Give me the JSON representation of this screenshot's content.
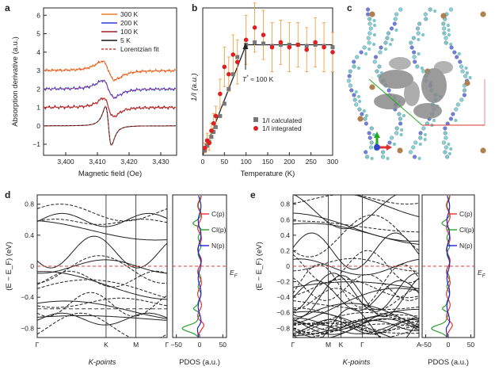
{
  "chart_data": [
    {
      "panel": "a",
      "type": "line",
      "xlabel": "Magnetic field (Oe)",
      "ylabel": "Absorption derivative (a.u.)",
      "xlim": [
        3393,
        3435
      ],
      "ylim": [
        -1.6,
        6.4
      ],
      "xticks": [
        "3,400",
        "3,410",
        "3,420",
        "3,430"
      ],
      "xtick_values": [
        3400,
        3410,
        3420,
        3430
      ],
      "yticks": [
        "−1",
        "0",
        "1",
        "2",
        "3",
        "4",
        "5",
        "6"
      ],
      "ytick_values": [
        -1,
        0,
        1,
        2,
        3,
        4,
        5,
        6
      ],
      "center": 3413.5,
      "series": [
        {
          "name": "300 K",
          "color": "#f07b22",
          "offset": 3,
          "amp": 0.6,
          "width": 3.5
        },
        {
          "name": "200 K",
          "color": "#2b3cd8",
          "offset": 2,
          "amp": 0.55,
          "width": 3.2
        },
        {
          "name": "100 K",
          "color": "#9e1f1f",
          "offset": 1,
          "amp": 0.6,
          "width": 2.8
        },
        {
          "name": "5 K",
          "color": "#111111",
          "offset": 0,
          "amp": 1.25,
          "width": 1.6
        },
        {
          "name": "Lorentzian fit",
          "color": "#e03a3a",
          "dashed": true
        }
      ]
    },
    {
      "panel": "b",
      "type": "scatter",
      "xlabel": "Temperature (K)",
      "ylabel": "1/I (a.u.)",
      "xlim": [
        0,
        300
      ],
      "ylim": [
        0,
        6
      ],
      "xticks": [
        "0",
        "50",
        "100",
        "150",
        "200",
        "250",
        "300"
      ],
      "xtick_values": [
        0,
        50,
        100,
        150,
        200,
        250,
        300
      ],
      "annotation": "T* ≈ 100 K",
      "fit_line": [
        [
          0,
          0
        ],
        [
          100,
          4.5
        ],
        [
          300,
          4.5
        ]
      ],
      "series": [
        {
          "name": "1/I calculated",
          "marker": "square",
          "color": "#777777",
          "x": [
            5,
            10,
            15,
            20,
            25,
            30,
            40,
            50,
            60,
            70,
            80,
            100,
            120,
            140,
            160,
            180,
            200,
            220,
            240,
            260,
            280,
            300
          ],
          "y": [
            0.2,
            0.4,
            0.55,
            0.75,
            0.95,
            1.15,
            1.6,
            2.1,
            2.7,
            3.3,
            4.0,
            4.5,
            4.6,
            4.55,
            4.45,
            4.5,
            4.5,
            4.5,
            4.45,
            4.5,
            4.45,
            4.4
          ]
        },
        {
          "name": "1/I integrated",
          "marker": "circle",
          "color": "#e02020",
          "x": [
            5,
            10,
            15,
            20,
            25,
            30,
            40,
            50,
            60,
            70,
            80,
            100,
            120,
            140,
            160,
            180,
            200,
            220,
            240,
            260,
            280,
            300
          ],
          "y": [
            0.3,
            0.6,
            0.5,
            1.0,
            1.3,
            1.6,
            2.5,
            3.6,
            3.3,
            4.1,
            3.8,
            4.7,
            5.2,
            4.9,
            4.4,
            4.6,
            4.4,
            4.5,
            4.3,
            4.6,
            4.4,
            4.2
          ],
          "yerr": [
            0.2,
            0.3,
            0.3,
            0.3,
            0.4,
            0.4,
            0.6,
            0.8,
            0.7,
            0.8,
            0.9,
            1.0,
            1.0,
            1.0,
            1.0,
            0.9,
            1.0,
            0.9,
            0.9,
            1.0,
            1.0,
            0.8
          ]
        }
      ]
    },
    {
      "panel": "c",
      "type": "other",
      "description": "Crystal structure with spin-density isosurfaces"
    },
    {
      "panel": "d",
      "type": "line",
      "xlabel": "K-points",
      "ylabel": "(E − E_F) (eV)",
      "ylim": [
        -0.92,
        0.92
      ],
      "yticks": [
        "−0.8",
        "−0.4",
        "0",
        "0.4",
        "0.8"
      ],
      "ytick_values": [
        -0.8,
        -0.4,
        0,
        0.4,
        0.8
      ],
      "extra_ytick": "−0.6",
      "xticks": [
        "Γ",
        "K",
        "M",
        "Γ"
      ],
      "xtick_values": [
        0,
        0.53,
        0.76,
        1.0
      ],
      "pdos": {
        "xlabel": "PDOS (a.u.)",
        "xticks": [
          "−50",
          "0",
          "50"
        ],
        "xtick_values": [
          -50,
          0,
          50
        ],
        "xlim": [
          -58,
          58
        ],
        "legend": [
          "C(p)",
          "Cl(p)",
          "N(p)"
        ],
        "fermi_label": "E_F"
      }
    },
    {
      "panel": "e",
      "type": "line",
      "xlabel": "K-points",
      "ylabel": "(E − E_F) (eV)",
      "ylim": [
        -0.92,
        0.92
      ],
      "yticks": [
        "−0.8",
        "−0.6",
        "−0.4",
        "−0.2",
        "0",
        "0.2",
        "0.4",
        "0.6",
        "0.8"
      ],
      "ytick_values": [
        -0.8,
        -0.6,
        -0.4,
        -0.2,
        0,
        0.2,
        0.4,
        0.6,
        0.8
      ],
      "xticks": [
        "Γ",
        "M",
        "K",
        "Γ",
        "A"
      ],
      "xtick_values": [
        0,
        0.28,
        0.38,
        0.55,
        1.0
      ],
      "pdos": {
        "xlabel": "PDOS (a.u.)",
        "xticks": [
          "−50",
          "0",
          "50"
        ],
        "xtick_values": [
          -50,
          0,
          50
        ],
        "xlim": [
          -58,
          58
        ],
        "legend": [
          "C(p)",
          "Cl(p)",
          "N(p)"
        ],
        "fermi_label": "E_F"
      }
    }
  ],
  "panels": {
    "a": "a",
    "b": "b",
    "c": "c",
    "d": "d",
    "e": "e"
  },
  "text": {
    "a_xlabel": "Magnetic field (Oe)",
    "a_ylabel": "Absorption derivative (a.u.)",
    "b_xlabel": "Temperature (K)",
    "b_ylabel": "1/I (a.u.)",
    "b_annot_T": "T",
    "b_annot_star": "*",
    "b_annot_rest": " ≈ 100 K",
    "b_leg_calc": "1/I calculated",
    "b_leg_int": "1/I integrated",
    "d_xlabel": "K-points",
    "d_ylabel": "(E − E_F) (eV)",
    "e_xlabel": "K-points",
    "e_ylabel": "(E − E_F) (eV)",
    "pdos_xlabel": "PDOS (a.u.)",
    "ef_E": "E",
    "ef_F": "F"
  },
  "colors": {
    "c_p": "#e83030",
    "cl_p": "#2ea02e",
    "n_p": "#2020d0",
    "fermi": "#e03a3a",
    "band": "#222222"
  }
}
